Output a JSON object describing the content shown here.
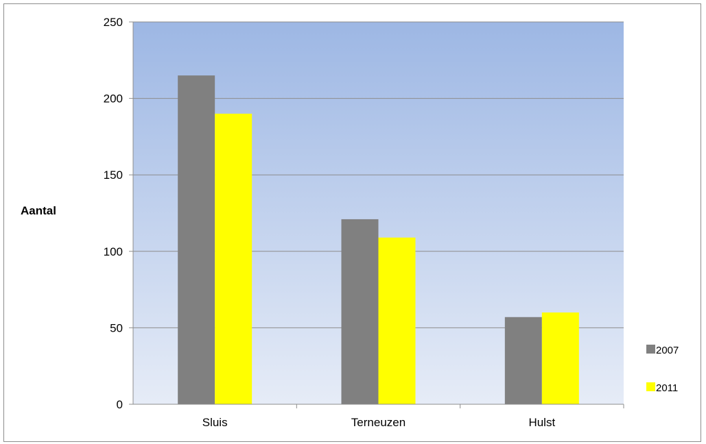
{
  "chart_data": {
    "type": "bar",
    "title": "",
    "xlabel": "",
    "ylabel": "Aantal",
    "categories": [
      "Sluis",
      "Terneuzen",
      "Hulst"
    ],
    "series": [
      {
        "name": "2007",
        "values": [
          215,
          121,
          57
        ],
        "color": "#808080"
      },
      {
        "name": "2011",
        "values": [
          190,
          109,
          60
        ],
        "color": "#ffff00"
      }
    ],
    "ylim": [
      0,
      250
    ],
    "yticks": [
      0,
      50,
      100,
      150,
      200,
      250
    ],
    "grid": true,
    "legend": "right",
    "plot_background": [
      "#9db7e4",
      "#e6ecf7"
    ]
  }
}
